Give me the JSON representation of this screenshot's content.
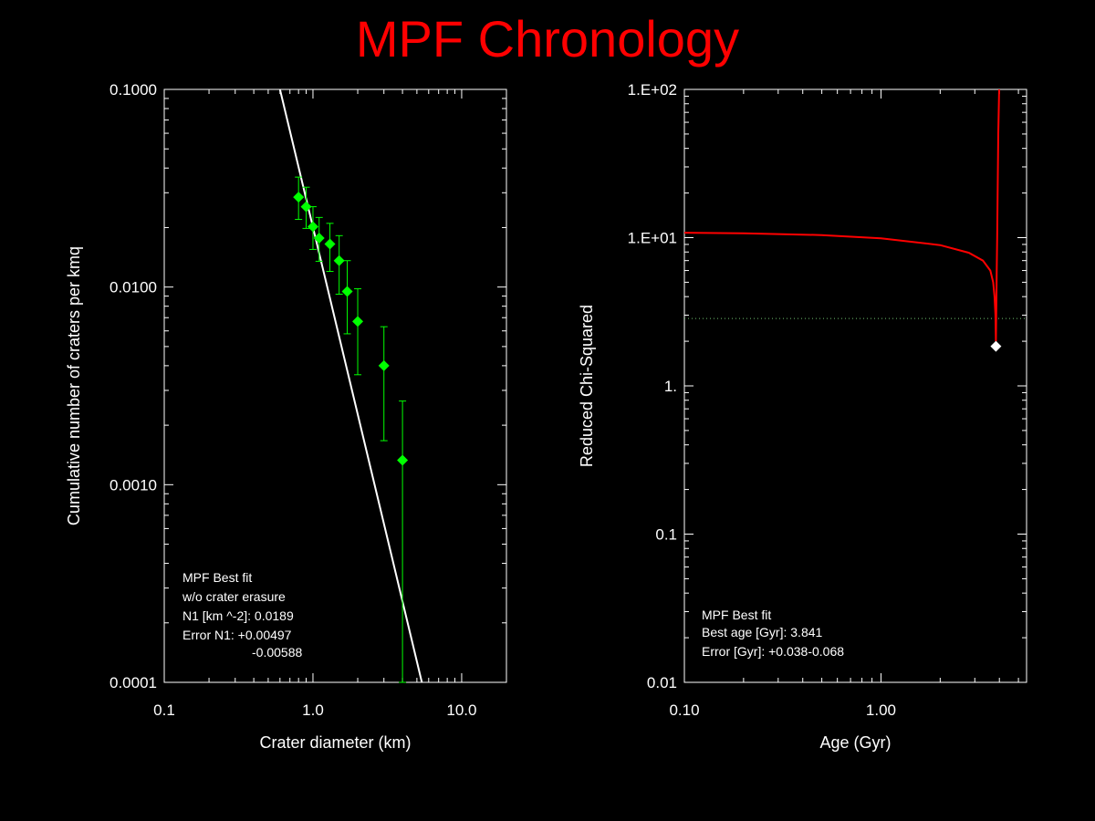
{
  "title": "MPF Chronology",
  "colors": {
    "background": "#000000",
    "title": "#ff0000",
    "axes": "#ffffff",
    "fit_line": "#ffffff",
    "data_points": "#00ff00",
    "chi_curve": "#ff0000",
    "best_marker": "#ffffff",
    "threshold_line": "#6fbf6f",
    "legend_header": "#ff0000"
  },
  "chart_data": [
    {
      "type": "scatter",
      "xlabel": "Crater diameter (km)",
      "ylabel": "Cumulative number of craters per kmq",
      "xscale": "log",
      "yscale": "log",
      "xlim": [
        0.1,
        20
      ],
      "ylim": [
        0.0001,
        0.1
      ],
      "grid": false,
      "x_ticks": [
        {
          "value": 0.1,
          "label": "0.1"
        },
        {
          "value": 1,
          "label": "1.0"
        },
        {
          "value": 10,
          "label": "10.0"
        }
      ],
      "y_ticks": [
        {
          "value": 0.1,
          "label": "0.1000"
        },
        {
          "value": 0.01,
          "label": "0.0100"
        },
        {
          "value": 0.001,
          "label": "0.0010"
        },
        {
          "value": 0.0001,
          "label": "0.0001"
        }
      ],
      "series": [
        {
          "kind": "points_with_errorbars",
          "x": [
            0.8,
            0.9,
            1.0,
            1.1,
            1.3,
            1.5,
            1.7,
            2.0,
            3.0,
            4.0
          ],
          "y": [
            0.0285,
            0.0255,
            0.0202,
            0.0177,
            0.0165,
            0.0136,
            0.0095,
            0.0067,
            0.004,
            0.00133
          ],
          "y_low": [
            0.022,
            0.0198,
            0.0155,
            0.0135,
            0.012,
            0.0092,
            0.0058,
            0.0036,
            0.00167,
            0.0001
          ],
          "y_high": [
            0.036,
            0.032,
            0.0255,
            0.0225,
            0.021,
            0.0182,
            0.0136,
            0.0098,
            0.0063,
            0.00265
          ]
        },
        {
          "kind": "fit_line",
          "x": [
            0.6,
            5.4
          ],
          "y": [
            0.1,
            0.0001
          ]
        }
      ],
      "legend": {
        "placement": "bottom-left",
        "header": "MPF Best fit",
        "lines": [
          "w/o crater erasure",
          "N1 [km ^-2]: 0.0189",
          "Error N1: +0.00497",
          "-0.00588"
        ]
      }
    },
    {
      "type": "line",
      "xlabel": "Age (Gyr)",
      "ylabel": "Reduced Chi-Squared",
      "xscale": "log",
      "yscale": "log",
      "xlim": [
        0.1,
        5.5
      ],
      "ylim": [
        0.01,
        100
      ],
      "grid": false,
      "x_ticks": [
        {
          "value": 0.1,
          "label": "0.10"
        },
        {
          "value": 1,
          "label": "1.00"
        }
      ],
      "y_ticks": [
        {
          "value": 100,
          "label": "1.E+02"
        },
        {
          "value": 10,
          "label": "1.E+01"
        },
        {
          "value": 1,
          "label": "1."
        },
        {
          "value": 0.1,
          "label": "0.1"
        },
        {
          "value": 0.01,
          "label": "0.01"
        }
      ],
      "series": [
        {
          "kind": "curve",
          "x": [
            0.1,
            0.2,
            0.5,
            1.0,
            2.0,
            2.8,
            3.3,
            3.6,
            3.72,
            3.78,
            3.82,
            3.841,
            3.86,
            3.88,
            3.9,
            3.92,
            3.95,
            4.0
          ],
          "y": [
            10.8,
            10.7,
            10.4,
            9.9,
            8.9,
            7.9,
            7.0,
            6.0,
            5.0,
            4.0,
            3.0,
            2.0,
            3.5,
            6.0,
            10.0,
            20.0,
            50.0,
            120.0
          ]
        },
        {
          "kind": "threshold",
          "y": 2.85
        },
        {
          "kind": "best_marker",
          "x": 3.841,
          "y": 1.85
        }
      ],
      "legend": {
        "placement": "bottom-left",
        "header": "MPF Best fit",
        "lines": [
          "Best age [Gyr]: 3.841",
          "Error [Gyr]: +0.038-0.068"
        ]
      }
    }
  ]
}
